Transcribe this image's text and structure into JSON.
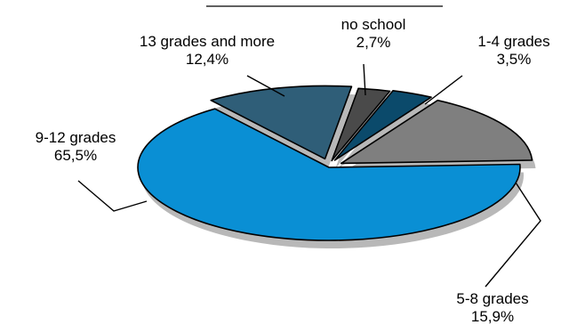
{
  "chart_data": {
    "type": "pie",
    "title": "",
    "style": "3d-exploded",
    "slices": [
      {
        "name": "no school",
        "value": 2.7,
        "value_label": "2,7%",
        "color": "#4a4a4a"
      },
      {
        "name": "1-4 grades",
        "value": 3.5,
        "value_label": "3,5%",
        "color": "#0b4a6b"
      },
      {
        "name": "5-8 grades",
        "value": 15.9,
        "value_label": "15,9%",
        "color": "#7f7f7f"
      },
      {
        "name": "9-12 grades",
        "value": 65.5,
        "value_label": "65,5%",
        "color": "#0a8fd4"
      },
      {
        "name": "13 grades and more",
        "value": 12.4,
        "value_label": "12,4%",
        "color": "#2f5e78"
      }
    ]
  }
}
